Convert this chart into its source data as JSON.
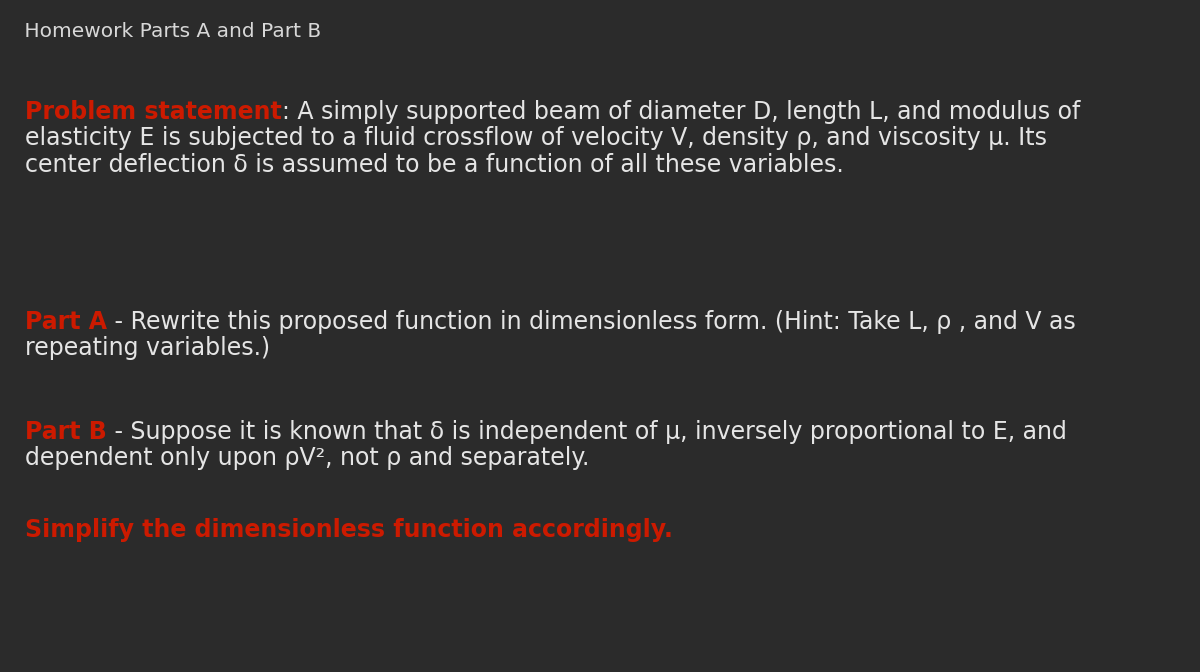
{
  "background_color": "#2b2b2b",
  "title_text": " Homework Parts A and Part B",
  "title_color": "#d8d8d8",
  "title_fontsize": 14.5,
  "problem_label": "Problem statement",
  "problem_label_color": "#cc1a00",
  "problem_body_1": ": A simply supported beam of diameter D, length L, and modulus of",
  "problem_body_2": "elasticity E is subjected to a fluid crossflow of velocity V, density ρ, and viscosity μ. Its",
  "problem_body_3": "center deflection δ is assumed to be a function of all these variables.",
  "problem_body_color": "#e5e5e5",
  "problem_fontsize": 17.0,
  "partA_label": "Part A",
  "partA_label_color": "#cc1a00",
  "partA_body_1": " - Rewrite this proposed function in dimensionless form. (Hint: Take L, ρ , and V as",
  "partA_body_2": "repeating variables.)",
  "partA_body_color": "#e5e5e5",
  "partA_fontsize": 17.0,
  "partB_label": "Part B",
  "partB_label_color": "#cc1a00",
  "partB_body_1": " - Suppose it is known that δ is independent of μ, inversely proportional to E, and",
  "partB_body_2": "dependent only upon ρV², not ρ and separately.",
  "partB_body_color": "#e5e5e5",
  "partB_fontsize": 17.0,
  "simplify_text": "Simplify the dimensionless function accordingly.",
  "simplify_color": "#cc1a00",
  "simplify_fontsize": 17.0,
  "font_family": "Georgia",
  "bold_font": "Georgia",
  "fig_width": 12.0,
  "fig_height": 6.72,
  "dpi": 100
}
